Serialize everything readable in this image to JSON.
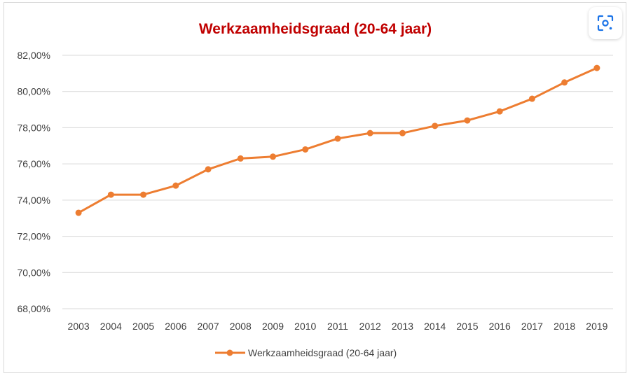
{
  "chart_data": {
    "type": "line",
    "title": "Werkzaamheidsgraad (20-64 jaar)",
    "xlabel": "",
    "ylabel": "",
    "categories": [
      "2003",
      "2004",
      "2005",
      "2006",
      "2007",
      "2008",
      "2009",
      "2010",
      "2011",
      "2012",
      "2013",
      "2014",
      "2015",
      "2016",
      "2017",
      "2018",
      "2019"
    ],
    "series": [
      {
        "name": "Werkzaamheidsgraad (20-64 jaar)",
        "values": [
          73.3,
          74.3,
          74.3,
          74.8,
          75.7,
          76.3,
          76.4,
          76.8,
          77.4,
          77.7,
          77.7,
          78.1,
          78.4,
          78.9,
          79.6,
          80.5,
          81.3
        ]
      }
    ],
    "ylim": [
      68,
      82
    ],
    "yticks": [
      "68,00%",
      "70,00%",
      "72,00%",
      "74,00%",
      "76,00%",
      "78,00%",
      "80,00%",
      "82,00%"
    ],
    "grid": true,
    "legend": "bottom",
    "colors": {
      "title": "#c00000",
      "series": "#ed7d31",
      "grid": "#d9d9d9",
      "axis_text": "#404040"
    }
  },
  "toolbar": {
    "lens_icon": "visual-search-icon"
  }
}
